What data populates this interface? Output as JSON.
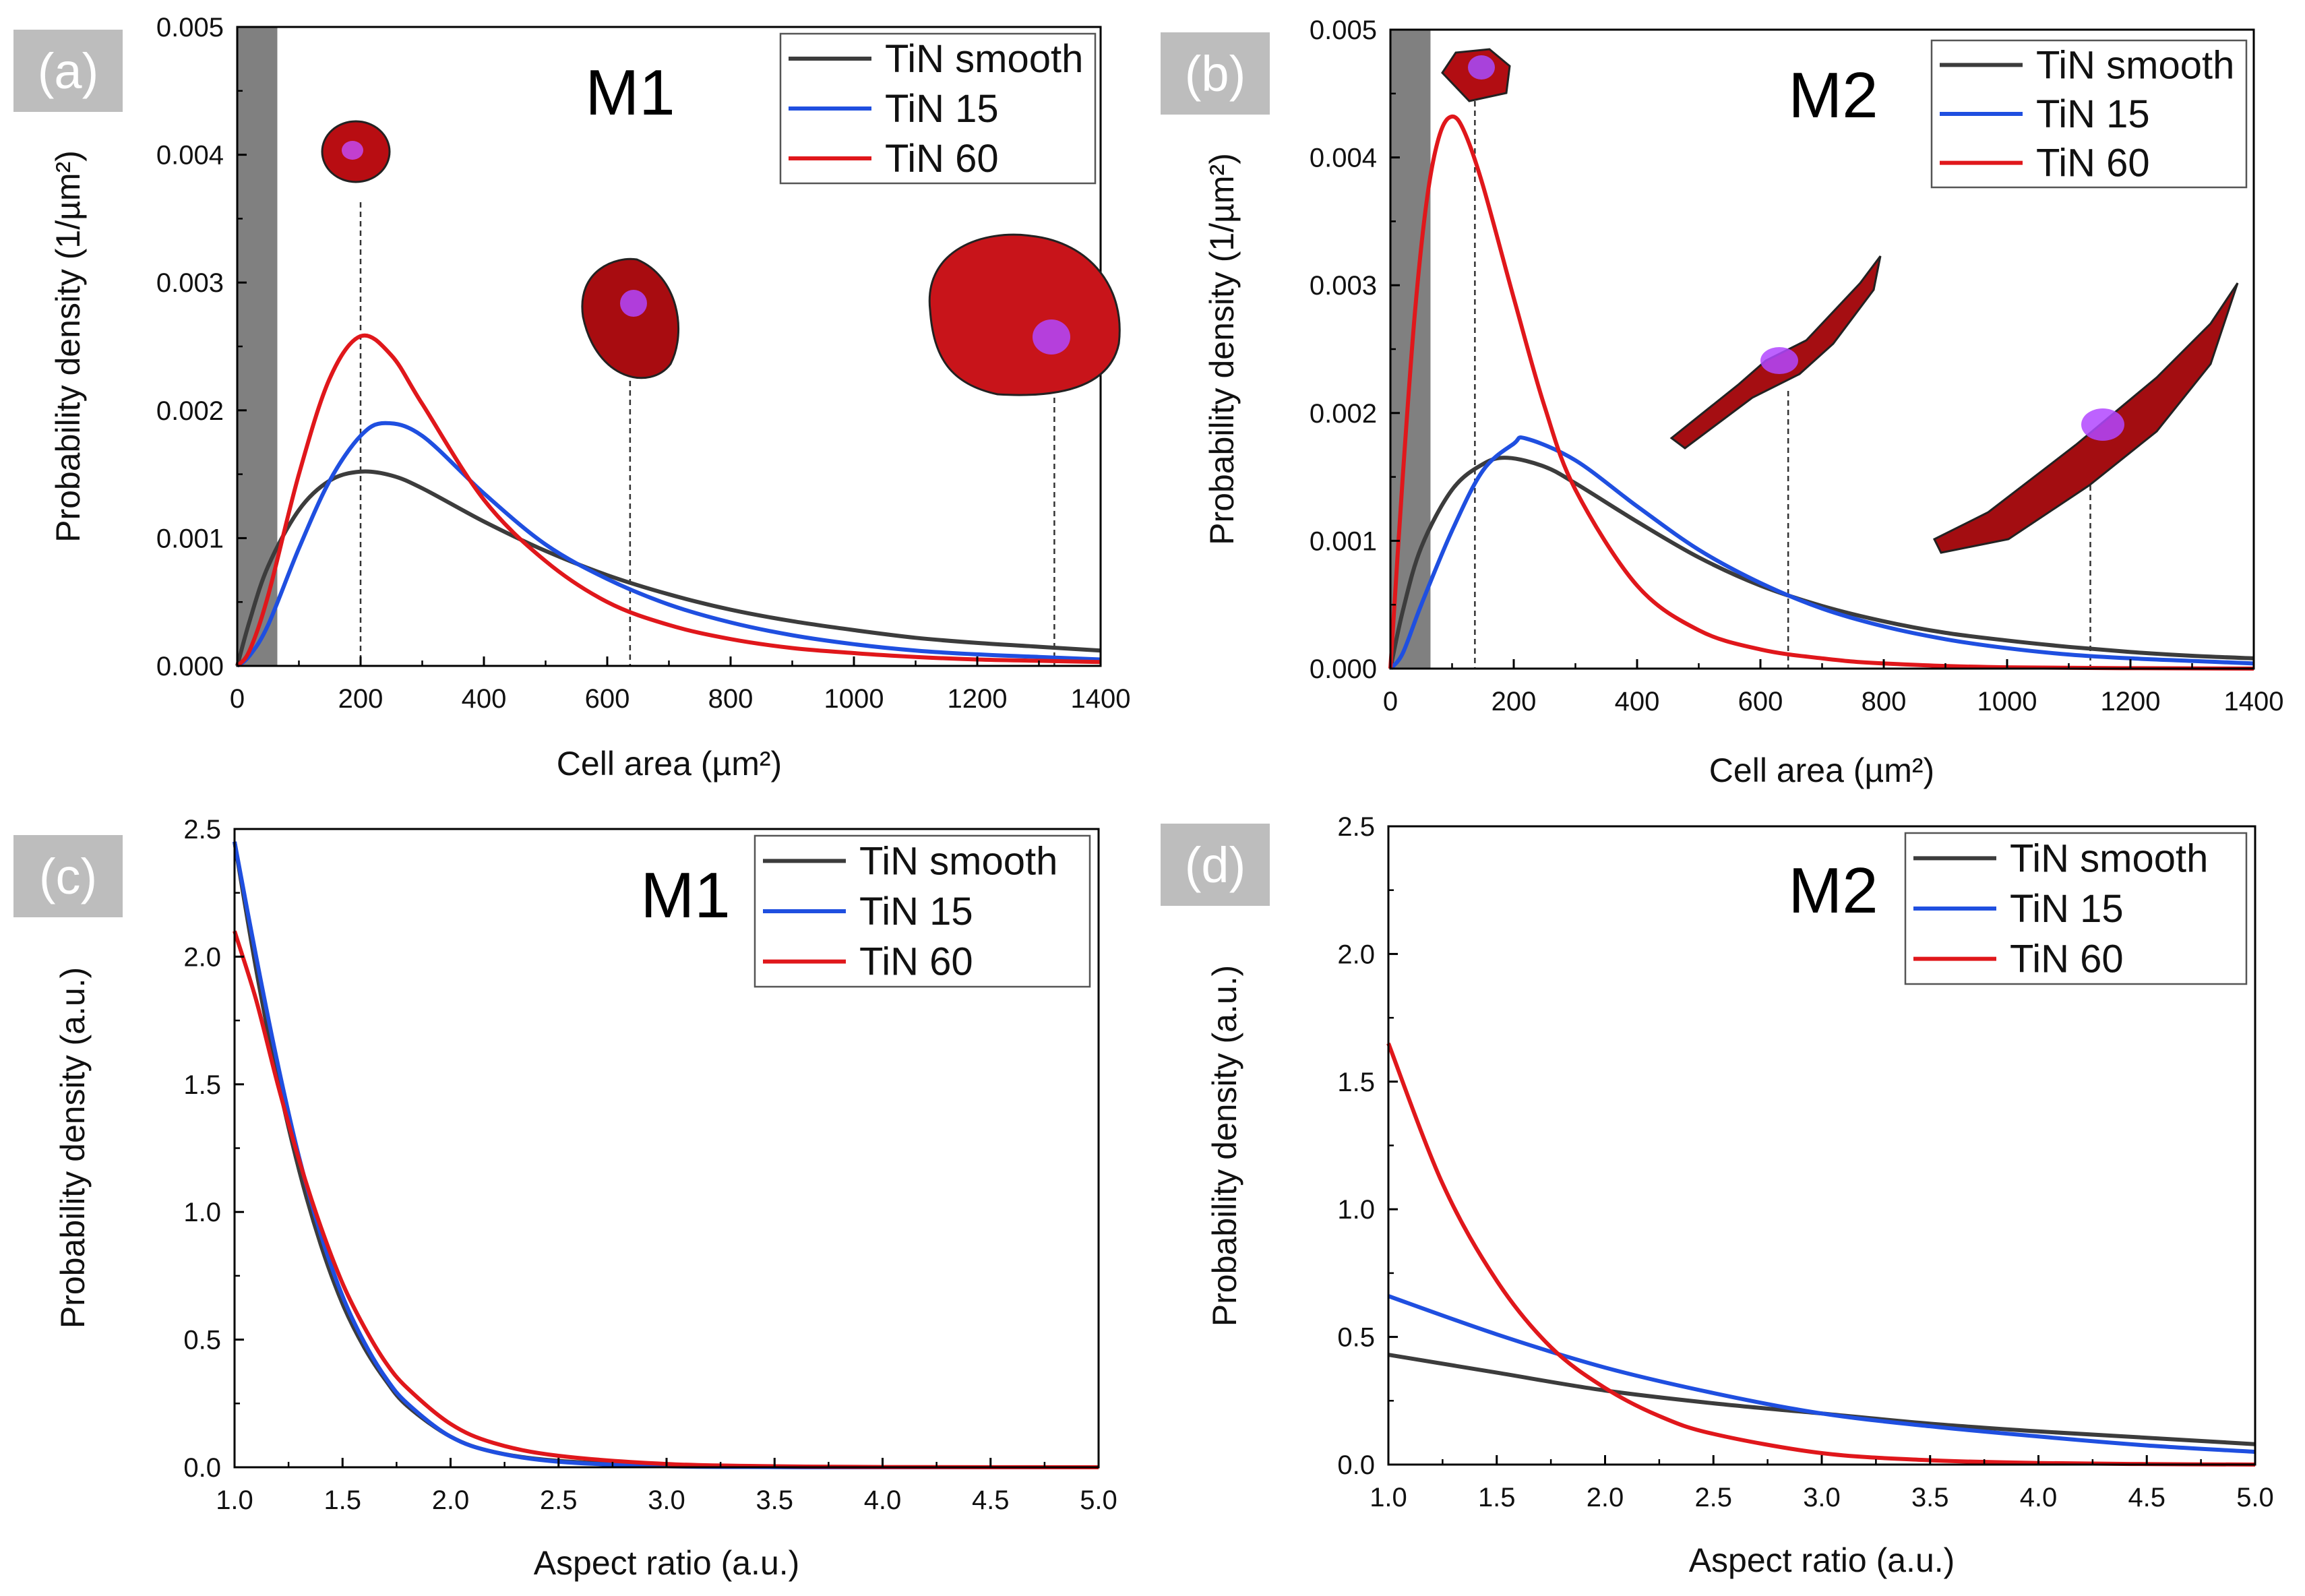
{
  "figure": {
    "x_label_area": "Cell area (µm²)",
    "x_label_ar": "Aspect ratio (a.u.)"
  },
  "colors": {
    "smooth": "#3c3c3c",
    "tin15": "#1f4fe0",
    "tin60": "#e0171b",
    "badge_bg": "#bdbdbd",
    "exclusion": "#808080"
  },
  "chart_data": [
    {
      "panel": "(a)",
      "model": "M1",
      "type": "line",
      "title": "",
      "xlabel": "Cell area (µm²)",
      "ylabel": "Probability density (1/µm²)",
      "xlim": [
        0,
        1400
      ],
      "ylim": [
        0,
        0.005
      ],
      "xticks": [
        "0",
        "200",
        "400",
        "600",
        "800",
        "1000",
        "1200",
        "1400"
      ],
      "yticks": [
        "0.000",
        "0.001",
        "0.002",
        "0.003",
        "0.004",
        "0.005"
      ],
      "legend_position": "top-right",
      "excluded_region": [
        0,
        65
      ],
      "marker_lines": [
        200,
        637,
        1325
      ],
      "series": [
        {
          "name": "TiN smooth",
          "color": "#3c3c3c",
          "points": [
            [
              0,
              0
            ],
            [
              20,
              0.00035
            ],
            [
              50,
              0.00078
            ],
            [
              100,
              0.00122
            ],
            [
              150,
              0.00145
            ],
            [
              200,
              0.00152
            ],
            [
              250,
              0.00149
            ],
            [
              300,
              0.00139
            ],
            [
              400,
              0.00113
            ],
            [
              500,
              0.0009
            ],
            [
              600,
              0.00071
            ],
            [
              700,
              0.00056
            ],
            [
              800,
              0.00044
            ],
            [
              900,
              0.00035
            ],
            [
              1000,
              0.00028
            ],
            [
              1100,
              0.00022
            ],
            [
              1200,
              0.00018
            ],
            [
              1300,
              0.00015
            ],
            [
              1400,
              0.00012
            ]
          ]
        },
        {
          "name": "TiN 15",
          "color": "#1f4fe0",
          "points": [
            [
              0,
              0
            ],
            [
              20,
              8e-05
            ],
            [
              50,
              0.00032
            ],
            [
              100,
              0.00092
            ],
            [
              150,
              0.00145
            ],
            [
              200,
              0.0018
            ],
            [
              240,
              0.0019
            ],
            [
              300,
              0.0018
            ],
            [
              400,
              0.00135
            ],
            [
              500,
              0.00095
            ],
            [
              600,
              0.00068
            ],
            [
              700,
              0.00048
            ],
            [
              800,
              0.00034
            ],
            [
              900,
              0.00024
            ],
            [
              1000,
              0.00017
            ],
            [
              1100,
              0.00012
            ],
            [
              1200,
              9e-05
            ],
            [
              1300,
              7e-05
            ],
            [
              1400,
              5e-05
            ]
          ]
        },
        {
          "name": "TiN 60",
          "color": "#e0171b",
          "points": [
            [
              0,
              0
            ],
            [
              20,
              0.00012
            ],
            [
              50,
              0.00055
            ],
            [
              100,
              0.0015
            ],
            [
              150,
              0.00225
            ],
            [
              200,
              0.00258
            ],
            [
              250,
              0.00243
            ],
            [
              300,
              0.00205
            ],
            [
              400,
              0.0013
            ],
            [
              500,
              0.00082
            ],
            [
              600,
              0.0005
            ],
            [
              700,
              0.00032
            ],
            [
              800,
              0.00021
            ],
            [
              900,
              0.00014
            ],
            [
              1000,
              0.0001
            ],
            [
              1100,
              7e-05
            ],
            [
              1200,
              5e-05
            ],
            [
              1300,
              4e-05
            ],
            [
              1400,
              3e-05
            ]
          ]
        }
      ]
    },
    {
      "panel": "(b)",
      "model": "M2",
      "type": "line",
      "title": "",
      "xlabel": "Cell area (µm²)",
      "ylabel": "Probability density (1/µm²)",
      "xlim": [
        0,
        1400
      ],
      "ylim": [
        0,
        0.005
      ],
      "xticks": [
        "0",
        "200",
        "400",
        "600",
        "800",
        "1000",
        "1200",
        "1400"
      ],
      "yticks": [
        "0.000",
        "0.001",
        "0.002",
        "0.003",
        "0.004",
        "0.005"
      ],
      "legend_position": "top-right",
      "excluded_region": [
        0,
        65
      ],
      "marker_lines": [
        137,
        645,
        1135
      ],
      "series": [
        {
          "name": "TiN smooth",
          "color": "#3c3c3c",
          "points": [
            [
              0,
              0
            ],
            [
              20,
              0.00045
            ],
            [
              50,
              0.00095
            ],
            [
              100,
              0.0014
            ],
            [
              150,
              0.0016
            ],
            [
              190,
              0.00165
            ],
            [
              250,
              0.00158
            ],
            [
              300,
              0.00145
            ],
            [
              400,
              0.00115
            ],
            [
              500,
              0.00087
            ],
            [
              600,
              0.00065
            ],
            [
              700,
              0.00049
            ],
            [
              800,
              0.00037
            ],
            [
              900,
              0.00028
            ],
            [
              1000,
              0.00022
            ],
            [
              1100,
              0.00017
            ],
            [
              1200,
              0.00013
            ],
            [
              1300,
              0.0001
            ],
            [
              1400,
              8e-05
            ]
          ]
        },
        {
          "name": "TiN 15",
          "color": "#1f4fe0",
          "points": [
            [
              0,
              0
            ],
            [
              20,
              0.00012
            ],
            [
              50,
              0.0005
            ],
            [
              100,
              0.00108
            ],
            [
              150,
              0.00155
            ],
            [
              200,
              0.00176
            ],
            [
              220,
              0.0018
            ],
            [
              300,
              0.00163
            ],
            [
              400,
              0.00127
            ],
            [
              500,
              0.00093
            ],
            [
              600,
              0.00067
            ],
            [
              700,
              0.00047
            ],
            [
              800,
              0.00033
            ],
            [
              900,
              0.00023
            ],
            [
              1000,
              0.00016
            ],
            [
              1100,
              0.00011
            ],
            [
              1200,
              8e-05
            ],
            [
              1300,
              6e-05
            ],
            [
              1400,
              4e-05
            ]
          ]
        },
        {
          "name": "TiN 60",
          "color": "#e0171b",
          "points": [
            [
              0,
              0
            ],
            [
              20,
              0.0015
            ],
            [
              40,
              0.0028
            ],
            [
              60,
              0.0037
            ],
            [
              80,
              0.00418
            ],
            [
              100,
              0.00432
            ],
            [
              120,
              0.0042
            ],
            [
              150,
              0.00378
            ],
            [
              200,
              0.0029
            ],
            [
              250,
              0.00205
            ],
            [
              300,
              0.0014
            ],
            [
              400,
              0.00065
            ],
            [
              500,
              0.0003
            ],
            [
              600,
              0.00015
            ],
            [
              700,
              8e-05
            ],
            [
              800,
              4e-05
            ],
            [
              1000,
              1e-05
            ],
            [
              1400,
              0.0
            ]
          ]
        }
      ]
    },
    {
      "panel": "(c)",
      "model": "M1",
      "type": "line",
      "title": "",
      "xlabel": "Aspect ratio (a.u.)",
      "ylabel": "Probability density (a.u.)",
      "xlim": [
        1.0,
        5.0
      ],
      "ylim": [
        0,
        2.5
      ],
      "xticks": [
        "1.0",
        "1.5",
        "2.0",
        "2.5",
        "3.0",
        "3.5",
        "4.0",
        "4.5",
        "5.0"
      ],
      "yticks": [
        "0.0",
        "0.5",
        "1.0",
        "1.5",
        "2.0",
        "2.5"
      ],
      "legend_position": "top-right",
      "series": [
        {
          "name": "TiN smooth",
          "color": "#3c3c3c",
          "points": [
            [
              1.0,
              2.45
            ],
            [
              1.1,
              1.95
            ],
            [
              1.2,
              1.52
            ],
            [
              1.3,
              1.16
            ],
            [
              1.4,
              0.87
            ],
            [
              1.5,
              0.64
            ],
            [
              1.6,
              0.47
            ],
            [
              1.7,
              0.34
            ],
            [
              1.8,
              0.24
            ],
            [
              2.0,
              0.12
            ],
            [
              2.2,
              0.06
            ],
            [
              2.5,
              0.025
            ],
            [
              3.0,
              0.006
            ],
            [
              3.5,
              0.001
            ],
            [
              4.0,
              0.0
            ],
            [
              5.0,
              0.0
            ]
          ]
        },
        {
          "name": "TiN 15",
          "color": "#1f4fe0",
          "points": [
            [
              1.0,
              2.45
            ],
            [
              1.1,
              2.0
            ],
            [
              1.2,
              1.58
            ],
            [
              1.3,
              1.21
            ],
            [
              1.4,
              0.91
            ],
            [
              1.5,
              0.67
            ],
            [
              1.6,
              0.49
            ],
            [
              1.7,
              0.35
            ],
            [
              1.8,
              0.25
            ],
            [
              2.0,
              0.12
            ],
            [
              2.2,
              0.06
            ],
            [
              2.5,
              0.022
            ],
            [
              3.0,
              0.004
            ],
            [
              3.5,
              0.001
            ],
            [
              4.0,
              0.0
            ],
            [
              5.0,
              0.0
            ]
          ]
        },
        {
          "name": "TiN 60",
          "color": "#e0171b",
          "points": [
            [
              1.0,
              2.1
            ],
            [
              1.1,
              1.83
            ],
            [
              1.2,
              1.5
            ],
            [
              1.3,
              1.2
            ],
            [
              1.4,
              0.94
            ],
            [
              1.5,
              0.72
            ],
            [
              1.6,
              0.55
            ],
            [
              1.7,
              0.41
            ],
            [
              1.8,
              0.31
            ],
            [
              2.0,
              0.17
            ],
            [
              2.2,
              0.095
            ],
            [
              2.5,
              0.045
            ],
            [
              3.0,
              0.013
            ],
            [
              3.5,
              0.004
            ],
            [
              4.0,
              0.001
            ],
            [
              5.0,
              0.0
            ]
          ]
        }
      ]
    },
    {
      "panel": "(d)",
      "model": "M2",
      "type": "line",
      "title": "",
      "xlabel": "Aspect ratio (a.u.)",
      "ylabel": "Probability density (a.u.)",
      "xlim": [
        1.0,
        5.0
      ],
      "ylim": [
        0,
        2.5
      ],
      "xticks": [
        "1.0",
        "1.5",
        "2.0",
        "2.5",
        "3.0",
        "3.5",
        "4.0",
        "4.5",
        "5.0"
      ],
      "yticks": [
        "0.0",
        "0.5",
        "1.0",
        "1.5",
        "2.0",
        "2.5"
      ],
      "legend_position": "top-right",
      "series": [
        {
          "name": "TiN smooth",
          "color": "#3c3c3c",
          "points": [
            [
              1.0,
              0.43
            ],
            [
              1.5,
              0.36
            ],
            [
              2.0,
              0.29
            ],
            [
              2.5,
              0.24
            ],
            [
              3.0,
              0.2
            ],
            [
              3.5,
              0.16
            ],
            [
              4.0,
              0.13
            ],
            [
              4.5,
              0.105
            ],
            [
              5.0,
              0.08
            ]
          ]
        },
        {
          "name": "TiN 15",
          "color": "#1f4fe0",
          "points": [
            [
              1.0,
              0.66
            ],
            [
              1.5,
              0.51
            ],
            [
              2.0,
              0.38
            ],
            [
              2.5,
              0.28
            ],
            [
              3.0,
              0.2
            ],
            [
              3.5,
              0.15
            ],
            [
              4.0,
              0.11
            ],
            [
              4.5,
              0.075
            ],
            [
              5.0,
              0.05
            ]
          ]
        },
        {
          "name": "TiN 60",
          "color": "#e0171b",
          "points": [
            [
              1.0,
              1.65
            ],
            [
              1.25,
              1.1
            ],
            [
              1.5,
              0.72
            ],
            [
              1.75,
              0.46
            ],
            [
              2.0,
              0.3
            ],
            [
              2.25,
              0.19
            ],
            [
              2.5,
              0.12
            ],
            [
              3.0,
              0.045
            ],
            [
              3.5,
              0.017
            ],
            [
              4.0,
              0.006
            ],
            [
              4.5,
              0.002
            ],
            [
              5.0,
              0.0
            ]
          ]
        }
      ]
    }
  ]
}
